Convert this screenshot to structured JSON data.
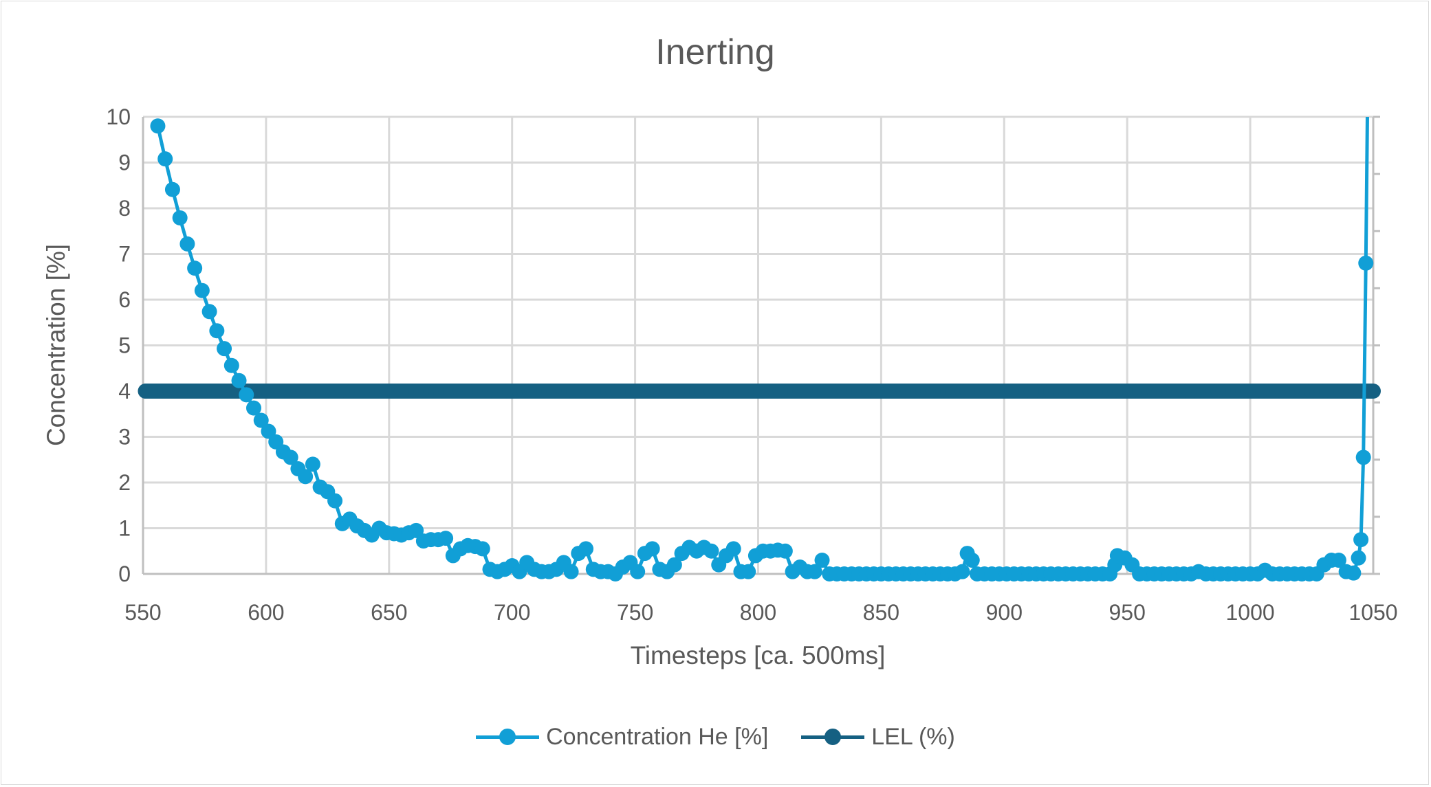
{
  "chart_data": {
    "type": "line",
    "title": "Inerting",
    "xlabel": "Timesteps [ca. 500ms]",
    "ylabel": "Concentration [%]",
    "xlim": [
      550,
      1050
    ],
    "ylim": [
      0,
      10
    ],
    "xticks": [
      "550",
      "600",
      "650",
      "700",
      "750",
      "800",
      "850",
      "900",
      "950",
      "1000",
      "1050"
    ],
    "yticks": [
      "0",
      "1",
      "2",
      "3",
      "4",
      "5",
      "6",
      "7",
      "8",
      "9",
      "10"
    ],
    "grid": true,
    "legend_position": "bottom",
    "series": [
      {
        "name": "Concentration He [%]",
        "color": "#119fd6",
        "points": [
          [
            556,
            9.8
          ],
          [
            559,
            9.08
          ],
          [
            562,
            8.41
          ],
          [
            565,
            7.79
          ],
          [
            568,
            7.22
          ],
          [
            571,
            6.69
          ],
          [
            574,
            6.2
          ],
          [
            577,
            5.74
          ],
          [
            580,
            5.32
          ],
          [
            583,
            4.93
          ],
          [
            586,
            4.56
          ],
          [
            589,
            4.23
          ],
          [
            592,
            3.92
          ],
          [
            595,
            3.63
          ],
          [
            598,
            3.36
          ],
          [
            601,
            3.12
          ],
          [
            604,
            2.89
          ],
          [
            607,
            2.67
          ],
          [
            610,
            2.55
          ],
          [
            613,
            2.3
          ],
          [
            616,
            2.13
          ],
          [
            619,
            2.4
          ],
          [
            622,
            1.9
          ],
          [
            625,
            1.8
          ],
          [
            628,
            1.6
          ],
          [
            631,
            1.1
          ],
          [
            634,
            1.2
          ],
          [
            637,
            1.05
          ],
          [
            640,
            0.95
          ],
          [
            643,
            0.85
          ],
          [
            646,
            1.0
          ],
          [
            649,
            0.9
          ],
          [
            652,
            0.88
          ],
          [
            655,
            0.85
          ],
          [
            658,
            0.9
          ],
          [
            661,
            0.95
          ],
          [
            664,
            0.72
          ],
          [
            667,
            0.75
          ],
          [
            670,
            0.75
          ],
          [
            673,
            0.78
          ],
          [
            676,
            0.4
          ],
          [
            679,
            0.55
          ],
          [
            682,
            0.62
          ],
          [
            685,
            0.6
          ],
          [
            688,
            0.55
          ],
          [
            691,
            0.1
          ],
          [
            694,
            0.05
          ],
          [
            697,
            0.1
          ],
          [
            700,
            0.18
          ],
          [
            703,
            0.05
          ],
          [
            706,
            0.25
          ],
          [
            709,
            0.1
          ],
          [
            712,
            0.05
          ],
          [
            715,
            0.05
          ],
          [
            718,
            0.1
          ],
          [
            721,
            0.25
          ],
          [
            724,
            0.05
          ],
          [
            727,
            0.45
          ],
          [
            730,
            0.55
          ],
          [
            733,
            0.1
          ],
          [
            736,
            0.05
          ],
          [
            739,
            0.05
          ],
          [
            742,
            0.0
          ],
          [
            745,
            0.15
          ],
          [
            748,
            0.25
          ],
          [
            751,
            0.05
          ],
          [
            754,
            0.45
          ],
          [
            757,
            0.55
          ],
          [
            760,
            0.1
          ],
          [
            763,
            0.05
          ],
          [
            766,
            0.2
          ],
          [
            769,
            0.45
          ],
          [
            772,
            0.58
          ],
          [
            775,
            0.5
          ],
          [
            778,
            0.58
          ],
          [
            781,
            0.5
          ],
          [
            784,
            0.2
          ],
          [
            787,
            0.4
          ],
          [
            790,
            0.55
          ],
          [
            793,
            0.05
          ],
          [
            796,
            0.05
          ],
          [
            799,
            0.4
          ],
          [
            802,
            0.5
          ],
          [
            805,
            0.5
          ],
          [
            808,
            0.52
          ],
          [
            811,
            0.5
          ],
          [
            814,
            0.05
          ],
          [
            817,
            0.15
          ],
          [
            820,
            0.05
          ],
          [
            823,
            0.05
          ],
          [
            826,
            0.3
          ],
          [
            829,
            0
          ],
          [
            832,
            0
          ],
          [
            835,
            0
          ],
          [
            838,
            0
          ],
          [
            841,
            0
          ],
          [
            844,
            0
          ],
          [
            847,
            0
          ],
          [
            850,
            0
          ],
          [
            853,
            0
          ],
          [
            856,
            0
          ],
          [
            859,
            0
          ],
          [
            862,
            0
          ],
          [
            865,
            0
          ],
          [
            868,
            0
          ],
          [
            871,
            0
          ],
          [
            874,
            0
          ],
          [
            877,
            0
          ],
          [
            880,
            0
          ],
          [
            883,
            0.05
          ],
          [
            885,
            0.45
          ],
          [
            887,
            0.3
          ],
          [
            889,
            0
          ],
          [
            892,
            0
          ],
          [
            895,
            0
          ],
          [
            898,
            0
          ],
          [
            901,
            0
          ],
          [
            904,
            0
          ],
          [
            907,
            0
          ],
          [
            910,
            0
          ],
          [
            913,
            0
          ],
          [
            916,
            0
          ],
          [
            919,
            0
          ],
          [
            922,
            0
          ],
          [
            925,
            0
          ],
          [
            928,
            0
          ],
          [
            931,
            0
          ],
          [
            934,
            0
          ],
          [
            937,
            0
          ],
          [
            940,
            0
          ],
          [
            943,
            0
          ],
          [
            945,
            0.2
          ],
          [
            946,
            0.4
          ],
          [
            949,
            0.35
          ],
          [
            952,
            0.2
          ],
          [
            955,
            0
          ],
          [
            958,
            0
          ],
          [
            961,
            0
          ],
          [
            964,
            0
          ],
          [
            967,
            0
          ],
          [
            970,
            0
          ],
          [
            973,
            0
          ],
          [
            976,
            0
          ],
          [
            979,
            0.05
          ],
          [
            982,
            0
          ],
          [
            985,
            0
          ],
          [
            988,
            0
          ],
          [
            991,
            0
          ],
          [
            994,
            0
          ],
          [
            997,
            0
          ],
          [
            1000,
            0
          ],
          [
            1003,
            0
          ],
          [
            1006,
            0.08
          ],
          [
            1009,
            0
          ],
          [
            1012,
            0
          ],
          [
            1015,
            0
          ],
          [
            1018,
            0
          ],
          [
            1021,
            0
          ],
          [
            1024,
            0
          ],
          [
            1027,
            0
          ],
          [
            1030,
            0.2
          ],
          [
            1033,
            0.3
          ],
          [
            1036,
            0.3
          ],
          [
            1039,
            0.05
          ],
          [
            1042,
            0.02
          ],
          [
            1044,
            0.35
          ],
          [
            1045,
            0.75
          ],
          [
            1046,
            2.55
          ],
          [
            1047,
            6.8
          ],
          [
            1048,
            12
          ]
        ]
      },
      {
        "name": "LEL (%)",
        "color": "#156082",
        "points": [
          [
            551,
            4
          ],
          [
            1050,
            4
          ]
        ]
      }
    ]
  }
}
